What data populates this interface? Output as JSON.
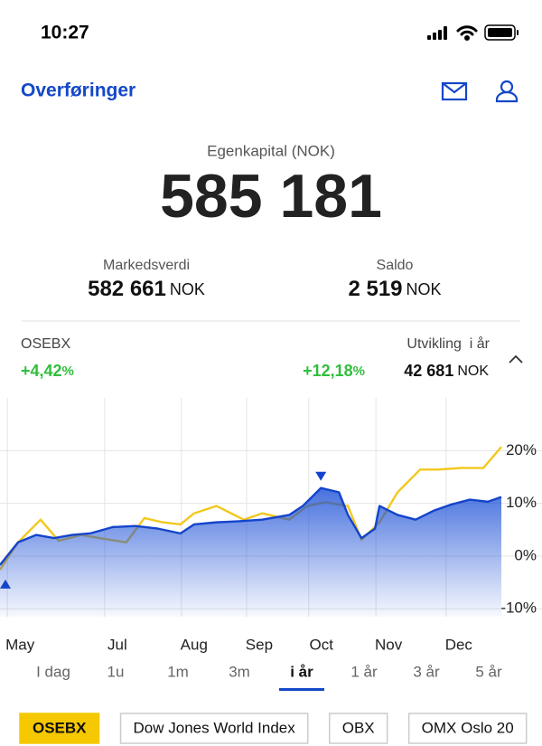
{
  "status_bar": {
    "time": "10:27"
  },
  "header": {
    "title": "Overføringer"
  },
  "summary": {
    "label": "Egenkapital (NOK)",
    "value": "585 181",
    "items": [
      {
        "label": "Markedsverdi",
        "value": "582 661",
        "unit": "NOK"
      },
      {
        "label": "Saldo",
        "value": "2 519",
        "unit": "NOK"
      }
    ]
  },
  "performance": {
    "index_name": "OSEBX",
    "index_change": "+4,42",
    "index_change_unit": "%",
    "label": "Utvikling  i år",
    "change": "+12,18",
    "change_unit": "%",
    "amount": "42 681",
    "amount_unit": "NOK"
  },
  "chart_data": {
    "type": "line",
    "xlim": [
      0,
      100
    ],
    "ylim": [
      -11.5,
      30
    ],
    "xticks": [
      {
        "value": 4,
        "label": "May"
      },
      {
        "value": 23.4,
        "label": "Jul"
      },
      {
        "value": 38.7,
        "label": "Aug"
      },
      {
        "value": 51.7,
        "label": "Sep"
      },
      {
        "value": 64.1,
        "label": "Oct"
      },
      {
        "value": 77.5,
        "label": "Nov"
      },
      {
        "value": 91.5,
        "label": "Dec"
      }
    ],
    "yticks": [
      {
        "value": -10,
        "label": "-10%"
      },
      {
        "value": 0,
        "label": "0%"
      },
      {
        "value": 10,
        "label": "10%"
      },
      {
        "value": 20,
        "label": "20%"
      }
    ],
    "grid": true,
    "series": [
      {
        "color": "#f2c81e",
        "x": [
          0,
          3.6,
          8.1,
          11.7,
          16.2,
          19.8,
          25.2,
          28.8,
          32.4,
          36,
          38.7,
          43.2,
          48.6,
          52.3,
          57.7,
          61.3,
          64.9,
          69.4,
          72.1,
          75.7,
          79.3,
          83.8,
          87.4,
          91.9,
          96.4,
          100
        ],
        "values": [
          -2.6,
          2.6,
          6.9,
          2.9,
          4,
          3.4,
          2.6,
          7.2,
          6.4,
          6,
          8.1,
          9.5,
          6.9,
          8.1,
          6.9,
          9.5,
          10.2,
          9.5,
          3.1,
          6.4,
          12.1,
          16.4,
          16.4,
          16.7,
          16.7,
          20.7
        ]
      },
      {
        "color": "#1444cc",
        "x": [
          0,
          3.6,
          7.2,
          10.8,
          14.4,
          18,
          22.5,
          27,
          31.5,
          36,
          38.7,
          43.2,
          47.7,
          52.3,
          57.7,
          60.4,
          64,
          67.6,
          69.4,
          72.1,
          74.8,
          75.7,
          79.3,
          82.9,
          86.5,
          90.1,
          93.7,
          97.3,
          100
        ],
        "values": [
          -1.7,
          2.6,
          4,
          3.4,
          4,
          4.3,
          5.5,
          5.7,
          5.2,
          4.3,
          6,
          6.4,
          6.6,
          6.9,
          7.8,
          9.5,
          12.9,
          12.1,
          7.8,
          3.4,
          5.2,
          9.5,
          7.8,
          6.9,
          8.6,
          9.8,
          10.7,
          10.3,
          11.2
        ]
      }
    ]
  },
  "tabs": {
    "items": [
      "I dag",
      "1u",
      "1m",
      "3m",
      "i år",
      "1 år",
      "3 år",
      "5 år"
    ],
    "active": 4
  },
  "indices": {
    "items": [
      "OSEBX",
      "Dow Jones World Index",
      "OBX",
      "OMX Oslo 20"
    ],
    "active": 0
  }
}
